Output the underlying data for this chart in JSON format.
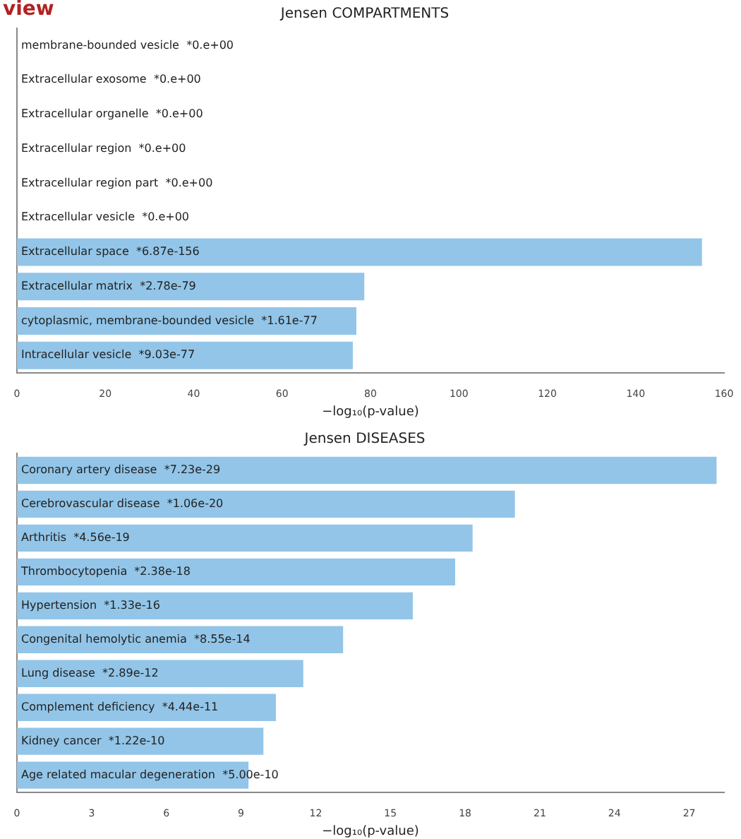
{
  "chart_data": [
    {
      "type": "bar",
      "orientation": "horizontal",
      "title": "Jensen COMPARTMENTS",
      "xlabel": "−log₁₀(p-value)",
      "annotations": [
        "view"
      ],
      "categories": [
        "membrane-bounded vesicle  *0.e+00",
        "Extracellular exosome  *0.e+00",
        "Extracellular organelle  *0.e+00",
        "Extracellular region  *0.e+00",
        "Extracellular region part  *0.e+00",
        "Extracellular vesicle  *0.e+00",
        "Extracellular space  *6.87e-156",
        "Extracellular matrix  *2.78e-79",
        "cytoplasmic, membrane-bounded vesicle  *1.61e-77",
        "Intracellular vesicle  *9.03e-77"
      ],
      "values": [
        null,
        null,
        null,
        null,
        null,
        null,
        155,
        78.6,
        76.8,
        76.0
      ],
      "color": "#92c5e8",
      "xlim": [
        0,
        160
      ],
      "xticks": [
        0,
        20,
        40,
        60,
        80,
        100,
        120,
        140,
        160
      ],
      "grid": false,
      "legend": false
    },
    {
      "type": "bar",
      "orientation": "horizontal",
      "title": "Jensen DISEASES",
      "xlabel": "−log₁₀(p-value)",
      "categories": [
        "Coronary artery disease  *7.23e-29",
        "Cerebrovascular disease  *1.06e-20",
        "Arthritis  *4.56e-19",
        "Thrombocytopenia  *2.38e-18",
        "Hypertension  *1.33e-16",
        "Congenital hemolytic anemia  *8.55e-14",
        "Lung disease  *2.89e-12",
        "Complement deficiency  *4.44e-11",
        "Kidney cancer  *1.22e-10",
        "Age related macular degeneration  *5.00e-10"
      ],
      "values": [
        28.1,
        20.0,
        18.3,
        17.6,
        15.9,
        13.1,
        11.5,
        10.4,
        9.9,
        9.3
      ],
      "color": "#92c5e8",
      "xlim": [
        0,
        28.4
      ],
      "xticks": [
        0,
        3,
        6,
        9,
        12,
        15,
        18,
        21,
        24,
        27
      ],
      "grid": false,
      "legend": false
    }
  ]
}
